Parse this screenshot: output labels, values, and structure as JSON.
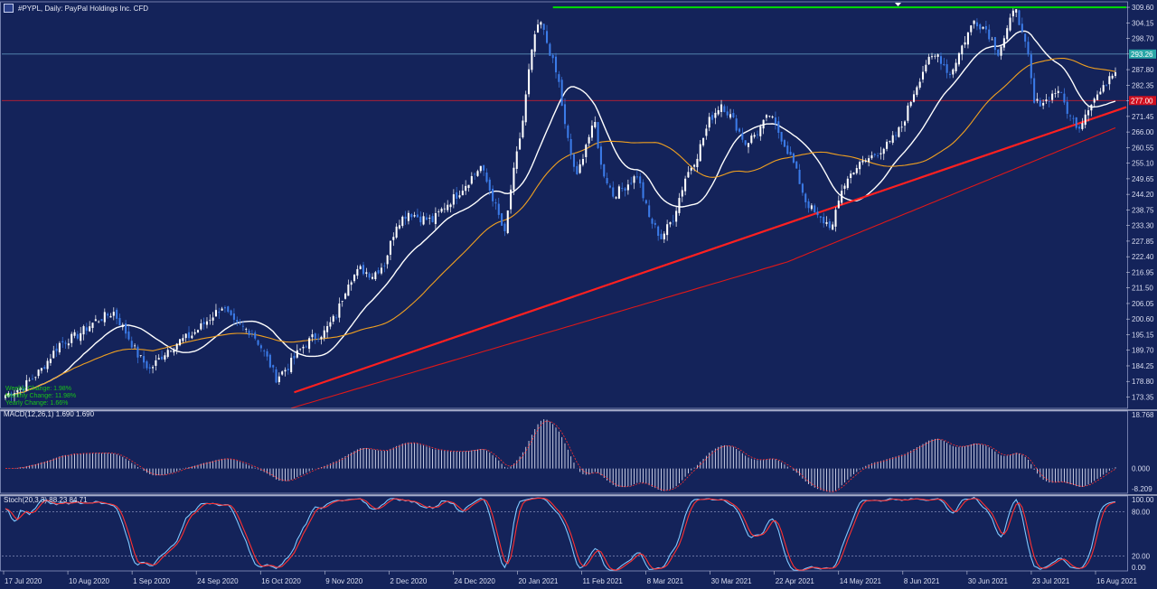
{
  "header": {
    "title": "#PYPL, Daily:  PayPal Holdings Inc. CFD"
  },
  "colors": {
    "background": "#14235a",
    "bull": "#ffffff",
    "bear": "#3b7be8",
    "ma_fast": "#ffffff",
    "ma_mid": "#f0a020",
    "ma_slow": "#e01818",
    "trendline": "#ff2020",
    "resistance": "#00e000",
    "macd_hist": "#d8dcf0",
    "macd_signal": "#ff3030",
    "stoch_main": "#7ec8ff",
    "stoch_signal": "#ff3030"
  },
  "overlay_legend": [
    "Weekly Change: 1.98%",
    "Monthly Change: 11.98%",
    "Yearly Change: 1.66%"
  ],
  "chart_data": [
    {
      "type": "candlestick",
      "name": "price",
      "title": "#PYPL, Daily:  PayPal Holdings Inc. CFD",
      "ylim": [
        169.4,
        311.2
      ],
      "y_ticks": [
        "309.60",
        "304.15",
        "298.70",
        "293.26",
        "287.80",
        "282.35",
        "276.90",
        "271.45",
        "266.00",
        "260.55",
        "255.10",
        "249.65",
        "244.20",
        "238.75",
        "233.30",
        "227.85",
        "222.40",
        "216.95",
        "211.50",
        "206.05",
        "200.60",
        "195.15",
        "189.70",
        "184.25",
        "178.80",
        "173.35"
      ],
      "x_ticks": [
        "17 Jul 2020",
        "10 Aug 2020",
        "1 Sep 2020",
        "24 Sep 2020",
        "16 Oct 2020",
        "9 Nov 2020",
        "2 Dec 2020",
        "24 Dec 2020",
        "20 Jan 2021",
        "11 Feb 2021",
        "8 Mar 2021",
        "30 Mar 2021",
        "22 Apr 2021",
        "14 May 2021",
        "8 Jun 2021",
        "30 Jun 2021",
        "23 Jul 2021",
        "16 Aug 2021"
      ],
      "anchors": [
        [
          0,
          174
        ],
        [
          6,
          177
        ],
        [
          12,
          183
        ],
        [
          18,
          192
        ],
        [
          24,
          195
        ],
        [
          30,
          200
        ],
        [
          36,
          203
        ],
        [
          40,
          196
        ],
        [
          44,
          188
        ],
        [
          48,
          183
        ],
        [
          54,
          190
        ],
        [
          58,
          193
        ],
        [
          62,
          195
        ],
        [
          68,
          201
        ],
        [
          72,
          205
        ],
        [
          76,
          199
        ],
        [
          82,
          196
        ],
        [
          86,
          189
        ],
        [
          90,
          180
        ],
        [
          94,
          184
        ],
        [
          98,
          190
        ],
        [
          102,
          194
        ],
        [
          106,
          196
        ],
        [
          110,
          202
        ],
        [
          114,
          214
        ],
        [
          118,
          218
        ],
        [
          122,
          216
        ],
        [
          126,
          220
        ],
        [
          130,
          234
        ],
        [
          134,
          238
        ],
        [
          138,
          236
        ],
        [
          142,
          235
        ],
        [
          146,
          240
        ],
        [
          150,
          244
        ],
        [
          154,
          249
        ],
        [
          158,
          254
        ],
        [
          162,
          243
        ],
        [
          166,
          230
        ],
        [
          168,
          246
        ],
        [
          172,
          270
        ],
        [
          174,
          287
        ],
        [
          176,
          300
        ],
        [
          178,
          304
        ],
        [
          181,
          294
        ],
        [
          184,
          283
        ],
        [
          186,
          268
        ],
        [
          188,
          258
        ],
        [
          190,
          250
        ],
        [
          193,
          262
        ],
        [
          196,
          269
        ],
        [
          198,
          254
        ],
        [
          202,
          244
        ],
        [
          206,
          247
        ],
        [
          210,
          251
        ],
        [
          214,
          236
        ],
        [
          218,
          229
        ],
        [
          222,
          236
        ],
        [
          226,
          250
        ],
        [
          230,
          258
        ],
        [
          234,
          270
        ],
        [
          238,
          276
        ],
        [
          242,
          270
        ],
        [
          246,
          262
        ],
        [
          250,
          266
        ],
        [
          254,
          272
        ],
        [
          258,
          264
        ],
        [
          262,
          255
        ],
        [
          266,
          242
        ],
        [
          270,
          236
        ],
        [
          275,
          233
        ],
        [
          278,
          246
        ],
        [
          282,
          253
        ],
        [
          286,
          256
        ],
        [
          290,
          259
        ],
        [
          294,
          262
        ],
        [
          298,
          268
        ],
        [
          302,
          280
        ],
        [
          306,
          290
        ],
        [
          310,
          293
        ],
        [
          314,
          286
        ],
        [
          318,
          296
        ],
        [
          322,
          305
        ],
        [
          326,
          302
        ],
        [
          330,
          294
        ],
        [
          332,
          299
        ],
        [
          336,
          310
        ],
        [
          338,
          300
        ],
        [
          340,
          292
        ],
        [
          342,
          276
        ],
        [
          346,
          277
        ],
        [
          350,
          281
        ],
        [
          354,
          271
        ],
        [
          357,
          268
        ],
        [
          360,
          275
        ],
        [
          363,
          279
        ],
        [
          365,
          281
        ],
        [
          367,
          286
        ],
        [
          369,
          288
        ]
      ],
      "ma": [
        {
          "period": 20,
          "color_key": "ma_fast"
        },
        {
          "period": 50,
          "color_key": "ma_mid"
        },
        {
          "period": 200,
          "color_key": "ma_slow"
        }
      ],
      "horizontal_lines": [
        {
          "role": "resistance",
          "value": 309.6,
          "from_bar": 182
        },
        {
          "role": "bid",
          "value": 293.26,
          "label": "293.26"
        },
        {
          "role": "previous-close",
          "value": 277.0,
          "label": "277.00"
        }
      ],
      "trendline": {
        "from": [
          96,
          175
        ],
        "to": [
          369,
          274.7
        ]
      }
    },
    {
      "type": "bar",
      "name": "macd",
      "title": "MACD(12,26,1) 1.690 1.690",
      "ylim": [
        -8.209,
        18.768
      ],
      "y_ticks": [
        "18.768",
        "0.000",
        "-8.209"
      ]
    },
    {
      "type": "line",
      "name": "stochastic",
      "title": "Stoch(20,3,3) 88.23 84.71",
      "ylim": [
        0,
        100
      ],
      "y_ticks": [
        "100.00",
        "80.00",
        "20.00",
        "0.00"
      ],
      "levels": [
        80,
        20
      ]
    }
  ]
}
